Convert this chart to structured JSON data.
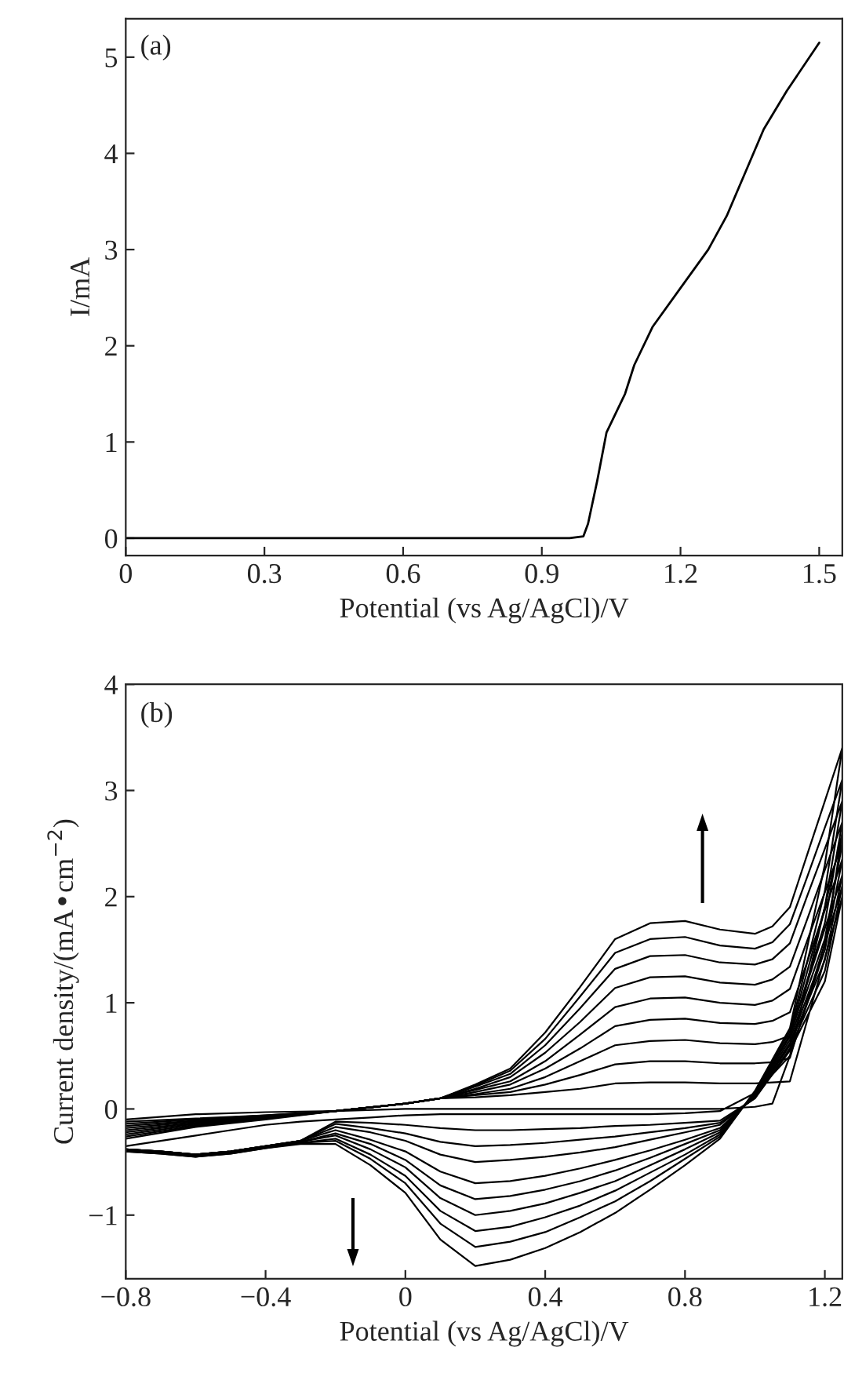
{
  "chart_data": [
    {
      "type": "line",
      "xlabel": "Potential (vs Ag/AgCl)/V",
      "ylabel": "I/mA",
      "annotations": [
        "(a)"
      ],
      "x": [
        0,
        0.96,
        0.99,
        1.0,
        1.02,
        1.04,
        1.06,
        1.08,
        1.1,
        1.14,
        1.2,
        1.26,
        1.3,
        1.34,
        1.38,
        1.43,
        1.5
      ],
      "series": [
        {
          "color": "#000000",
          "values": [
            0,
            0,
            0.02,
            0.15,
            0.6,
            1.1,
            1.3,
            1.5,
            1.8,
            2.2,
            2.6,
            3.0,
            3.35,
            3.8,
            4.25,
            4.65,
            5.15
          ]
        }
      ],
      "xlim": [
        0,
        1.55
      ],
      "ylim": [
        -0.18,
        5.4
      ],
      "xticks": [
        0,
        0.3,
        0.6,
        0.9,
        1.2,
        1.5
      ],
      "yticks": [
        0,
        1,
        2,
        3,
        4,
        5
      ],
      "grid": false,
      "legend": false,
      "marker": "none",
      "line_style": "solid"
    },
    {
      "type": "line",
      "xlabel": "Potential (vs Ag/AgCl)/V",
      "ylabel": "Current density/(mA•cm$^{−2}$)",
      "annotations": [
        "(b)"
      ],
      "x": [
        -0.8,
        -0.6,
        -0.4,
        -0.2,
        0,
        0.1,
        0.2,
        0.3,
        0.4,
        0.5,
        0.6,
        0.7,
        0.8,
        0.9,
        1.0,
        1.05,
        1.1,
        1.15,
        1.2,
        1.25,
        1.25,
        1.2,
        1.1,
        1.0,
        0.9,
        0.8,
        0.7,
        0.6,
        0.5,
        0.4,
        0.3,
        0.2,
        0.1,
        0,
        -0.1,
        -0.2,
        -0.3,
        -0.4,
        -0.5,
        -0.6,
        -0.7,
        -0.8
      ],
      "series": [
        {
          "color": "#000000",
          "values": [
            -0.1,
            -0.05,
            -0.03,
            -0.02,
            0.0,
            0.0,
            0.0,
            0.0,
            0.0,
            0.0,
            0.0,
            0.0,
            0.0,
            0.0,
            0.02,
            0.05,
            0.5,
            1.2,
            1.9,
            2.6,
            2.6,
            1.5,
            0.5,
            0.15,
            -0.02,
            -0.04,
            -0.05,
            -0.05,
            -0.05,
            -0.05,
            -0.05,
            -0.05,
            -0.05,
            -0.06,
            -0.08,
            -0.1,
            -0.12,
            -0.15,
            -0.2,
            -0.25,
            -0.3,
            -0.35
          ]
        },
        {
          "color": "#000000",
          "values": [
            -0.12,
            -0.09,
            -0.06,
            -0.02,
            0.05,
            0.1,
            0.11,
            0.13,
            0.16,
            0.19,
            0.24,
            0.25,
            0.25,
            0.24,
            0.24,
            0.25,
            0.26,
            0.84,
            1.42,
            2.0,
            2.0,
            1.2,
            0.55,
            0.1,
            -0.11,
            -0.13,
            -0.15,
            -0.16,
            -0.18,
            -0.19,
            -0.2,
            -0.2,
            -0.18,
            -0.15,
            -0.13,
            -0.12,
            -0.3,
            -0.35,
            -0.4,
            -0.43,
            -0.4,
            -0.38
          ]
        },
        {
          "color": "#000000",
          "values": [
            -0.14,
            -0.1,
            -0.06,
            -0.02,
            0.05,
            0.1,
            0.13,
            0.16,
            0.23,
            0.32,
            0.42,
            0.45,
            0.45,
            0.43,
            0.43,
            0.44,
            0.48,
            1.02,
            1.56,
            2.1,
            2.1,
            1.3,
            0.57,
            0.1,
            -0.13,
            -0.18,
            -0.22,
            -0.26,
            -0.29,
            -0.32,
            -0.34,
            -0.35,
            -0.31,
            -0.23,
            -0.18,
            -0.14,
            -0.3,
            -0.35,
            -0.4,
            -0.43,
            -0.4,
            -0.38
          ]
        },
        {
          "color": "#000000",
          "values": [
            -0.16,
            -0.11,
            -0.07,
            -0.02,
            0.05,
            0.1,
            0.14,
            0.19,
            0.3,
            0.45,
            0.6,
            0.64,
            0.65,
            0.62,
            0.61,
            0.63,
            0.69,
            1.19,
            1.7,
            2.2,
            2.2,
            1.4,
            0.6,
            0.11,
            -0.15,
            -0.22,
            -0.29,
            -0.36,
            -0.41,
            -0.45,
            -0.48,
            -0.5,
            -0.43,
            -0.3,
            -0.22,
            -0.17,
            -0.3,
            -0.35,
            -0.4,
            -0.43,
            -0.4,
            -0.38
          ]
        },
        {
          "color": "#000000",
          "values": [
            -0.18,
            -0.12,
            -0.07,
            -0.02,
            0.05,
            0.1,
            0.16,
            0.23,
            0.38,
            0.57,
            0.78,
            0.84,
            0.85,
            0.81,
            0.8,
            0.83,
            0.91,
            1.39,
            1.87,
            2.35,
            2.35,
            1.5,
            0.62,
            0.12,
            -0.18,
            -0.29,
            -0.39,
            -0.48,
            -0.56,
            -0.63,
            -0.68,
            -0.7,
            -0.59,
            -0.4,
            -0.29,
            -0.2,
            -0.3,
            -0.35,
            -0.4,
            -0.43,
            -0.4,
            -0.38
          ]
        },
        {
          "color": "#000000",
          "values": [
            -0.2,
            -0.13,
            -0.08,
            -0.02,
            0.05,
            0.1,
            0.18,
            0.26,
            0.45,
            0.7,
            0.96,
            1.04,
            1.05,
            1.0,
            0.98,
            1.02,
            1.13,
            1.59,
            2.04,
            2.5,
            2.5,
            1.6,
            0.65,
            0.13,
            -0.2,
            -0.33,
            -0.46,
            -0.58,
            -0.68,
            -0.76,
            -0.82,
            -0.85,
            -0.72,
            -0.48,
            -0.33,
            -0.23,
            -0.31,
            -0.35,
            -0.4,
            -0.43,
            -0.4,
            -0.38
          ]
        },
        {
          "color": "#000000",
          "values": [
            -0.22,
            -0.14,
            -0.08,
            -0.02,
            0.05,
            0.1,
            0.19,
            0.3,
            0.53,
            0.82,
            1.14,
            1.24,
            1.25,
            1.19,
            1.17,
            1.22,
            1.34,
            1.79,
            2.25,
            2.7,
            2.7,
            1.75,
            0.68,
            0.14,
            -0.22,
            -0.38,
            -0.53,
            -0.68,
            -0.79,
            -0.89,
            -0.96,
            -1.0,
            -0.84,
            -0.55,
            -0.38,
            -0.25,
            -0.31,
            -0.36,
            -0.41,
            -0.44,
            -0.41,
            -0.39
          ]
        },
        {
          "color": "#000000",
          "values": [
            -0.24,
            -0.15,
            -0.09,
            -0.02,
            0.05,
            0.1,
            0.21,
            0.33,
            0.6,
            0.95,
            1.32,
            1.44,
            1.45,
            1.38,
            1.36,
            1.41,
            1.56,
            2.01,
            2.45,
            2.9,
            2.9,
            1.9,
            0.7,
            0.15,
            -0.24,
            -0.43,
            -0.6,
            -0.77,
            -0.91,
            -1.02,
            -1.11,
            -1.15,
            -0.96,
            -0.63,
            -0.43,
            -0.28,
            -0.32,
            -0.36,
            -0.41,
            -0.44,
            -0.41,
            -0.39
          ]
        },
        {
          "color": "#000000",
          "values": [
            -0.26,
            -0.16,
            -0.09,
            -0.02,
            0.05,
            0.1,
            0.22,
            0.36,
            0.66,
            1.06,
            1.47,
            1.6,
            1.62,
            1.54,
            1.51,
            1.57,
            1.74,
            2.19,
            2.65,
            3.1,
            3.1,
            2.05,
            0.73,
            0.16,
            -0.26,
            -0.47,
            -0.68,
            -0.87,
            -1.02,
            -1.16,
            -1.25,
            -1.3,
            -1.08,
            -0.7,
            -0.47,
            -0.3,
            -0.32,
            -0.37,
            -0.42,
            -0.45,
            -0.42,
            -0.4
          ]
        },
        {
          "color": "#000000",
          "values": [
            -0.28,
            -0.17,
            -0.1,
            -0.02,
            0.05,
            0.1,
            0.23,
            0.38,
            0.72,
            1.15,
            1.6,
            1.75,
            1.77,
            1.69,
            1.65,
            1.72,
            1.9,
            2.4,
            2.9,
            3.4,
            3.4,
            2.3,
            0.76,
            0.17,
            -0.28,
            -0.53,
            -0.76,
            -0.98,
            -1.16,
            -1.31,
            -1.42,
            -1.48,
            -1.23,
            -0.79,
            -0.53,
            -0.33,
            -0.33,
            -0.37,
            -0.42,
            -0.45,
            -0.42,
            -0.4
          ]
        }
      ],
      "xlim": [
        -0.8,
        1.25
      ],
      "ylim": [
        -1.6,
        4
      ],
      "xticks": [
        {
          "value": -0.8,
          "label": "−0.8"
        },
        {
          "value": -0.4,
          "label": "−0.4"
        },
        0,
        0.4,
        0.8,
        1.2
      ],
      "yticks": [
        {
          "value": -1,
          "label": "−1"
        },
        0,
        1,
        2,
        3,
        4
      ],
      "grid": false,
      "legend": false,
      "marker": "none",
      "line_style": "solid"
    }
  ]
}
